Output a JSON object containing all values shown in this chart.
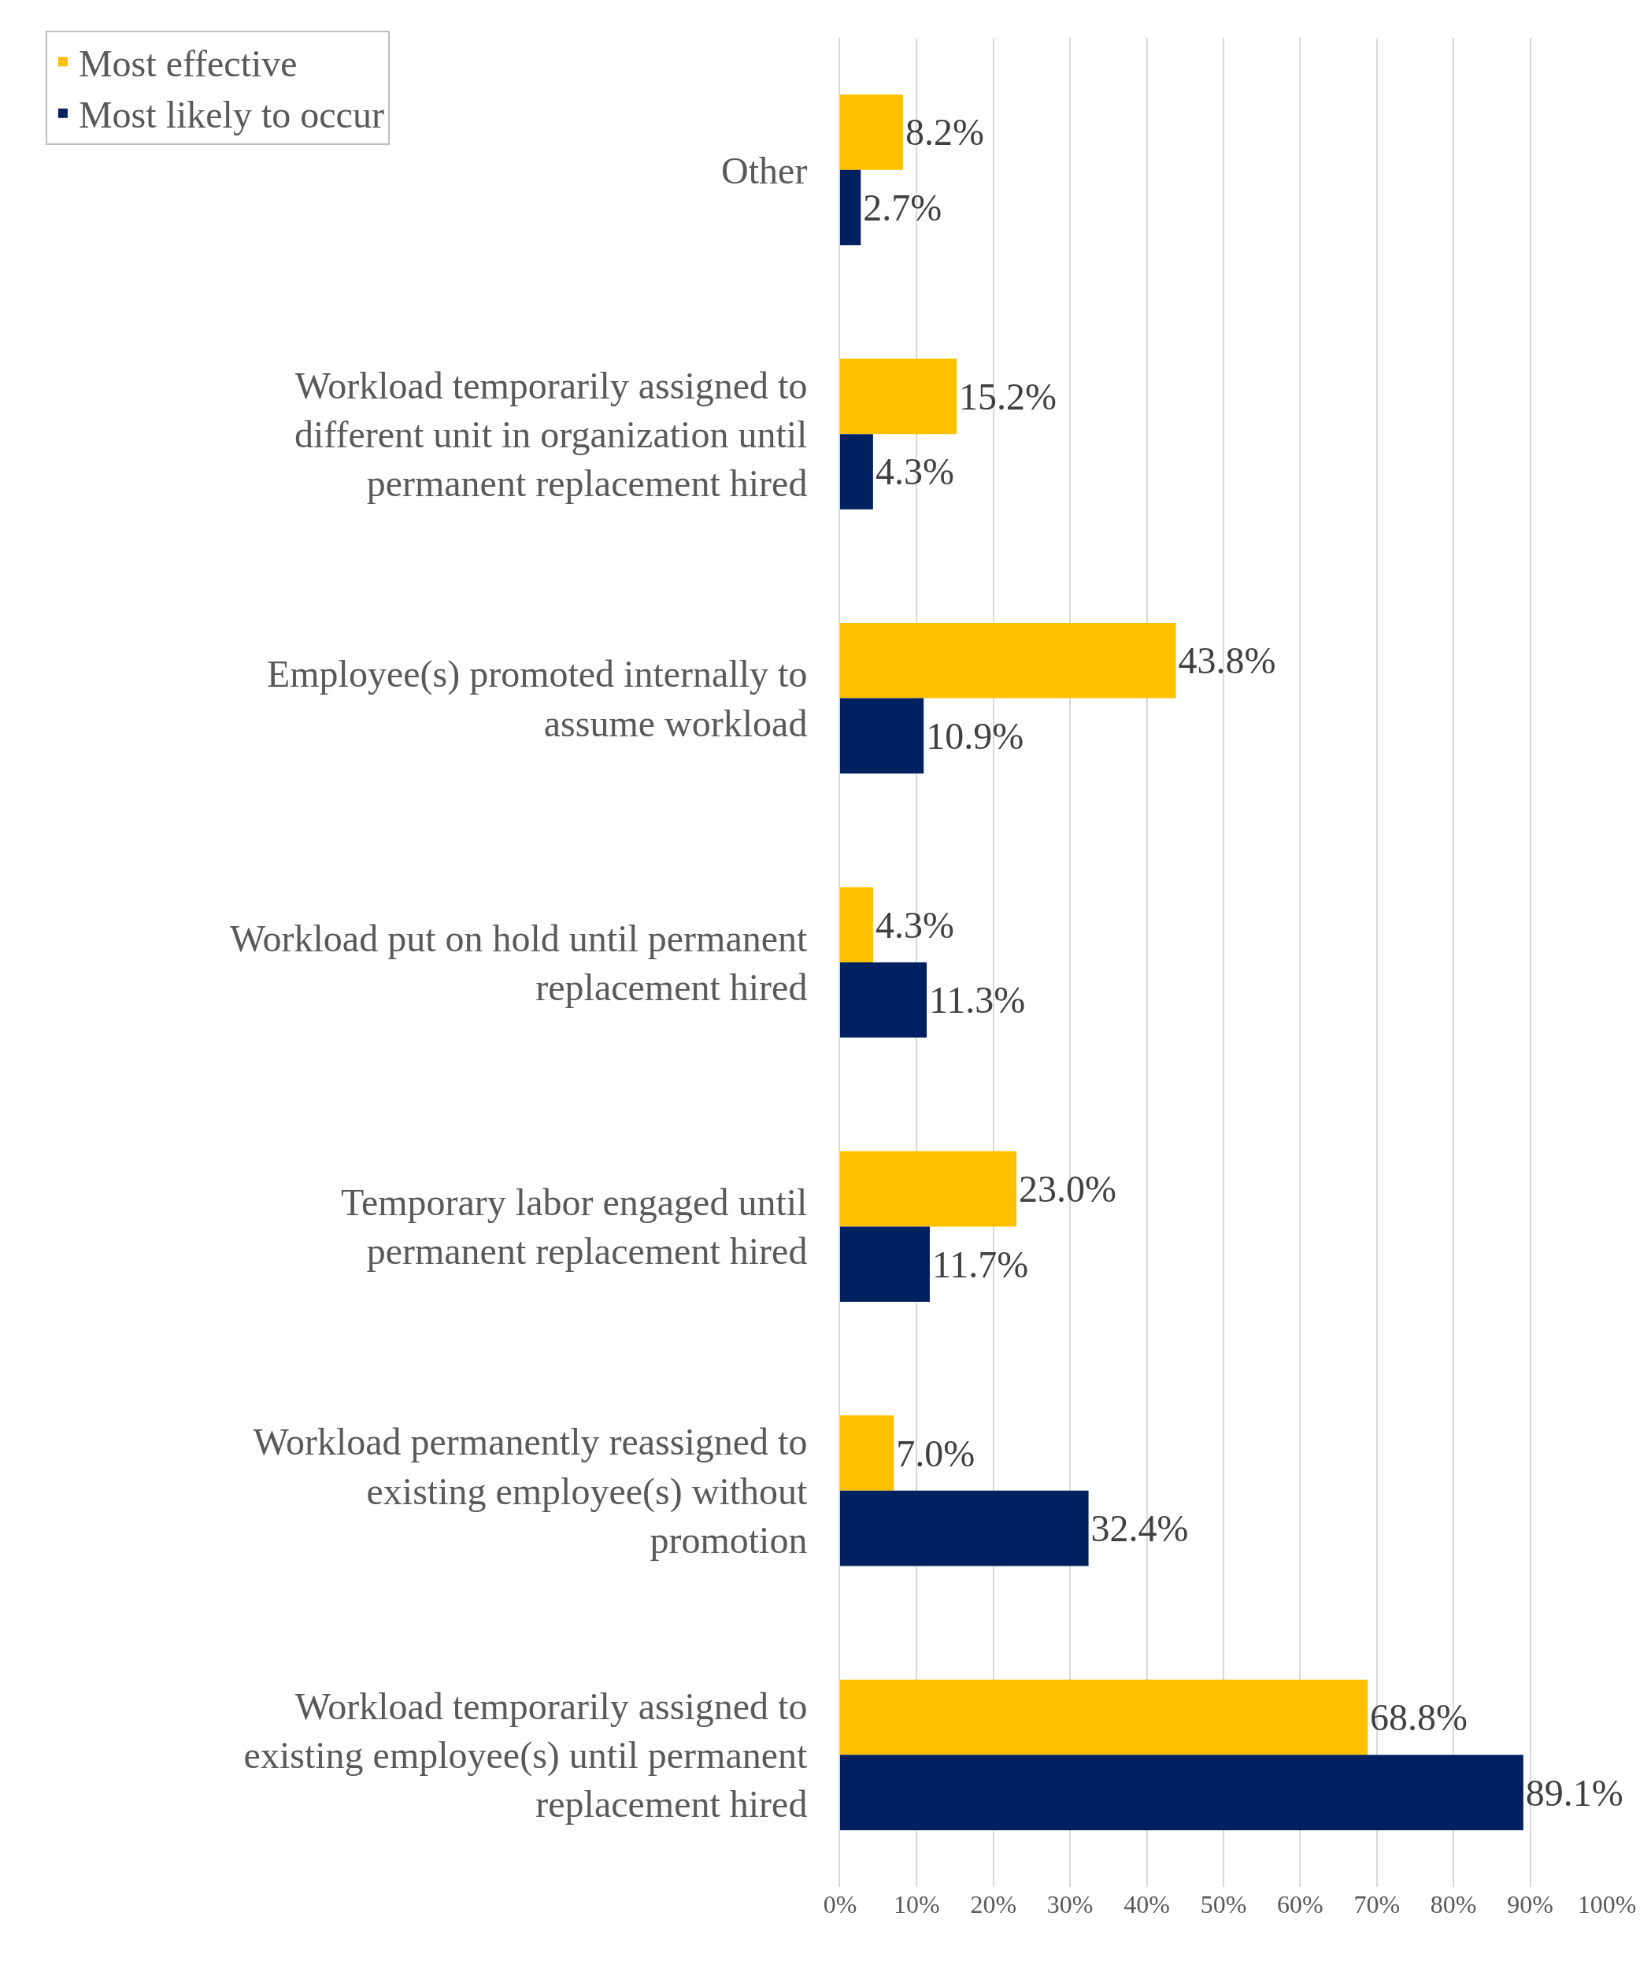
{
  "chart_data": {
    "type": "bar",
    "orientation": "horizontal",
    "categories": [
      "Other",
      "Workload temporarily assigned to different unit in organization until permanent replacement hired",
      "Employee(s) promoted internally to assume workload",
      "Workload put on hold until permanent replacement hired",
      "Temporary labor engaged until permanent replacement hired",
      "Workload permanently reassigned to existing employee(s) without promotion",
      "Workload temporarily assigned to existing employee(s) until permanent replacement hired"
    ],
    "series": [
      {
        "name": "Most effective",
        "color": "#ffc000",
        "values": [
          8.2,
          15.2,
          43.8,
          4.3,
          23.0,
          7.0,
          68.8
        ],
        "value_labels": [
          "8.2%",
          "15.2%",
          "43.8%",
          "4.3%",
          "23.0%",
          "7.0%",
          "68.8%"
        ]
      },
      {
        "name": "Most likely to occur",
        "color": "#002060",
        "values": [
          2.7,
          4.3,
          10.9,
          11.3,
          11.7,
          32.4,
          89.1
        ],
        "value_labels": [
          "2.7%",
          "4.3%",
          "10.9%",
          "11.3%",
          "11.7%",
          "32.4%",
          "89.1%"
        ]
      }
    ],
    "xlim": [
      0,
      100
    ],
    "xticks": [
      {
        "value": 0,
        "label": "0%"
      },
      {
        "value": 10,
        "label": "10%"
      },
      {
        "value": 20,
        "label": "20%"
      },
      {
        "value": 30,
        "label": "30%"
      },
      {
        "value": 40,
        "label": "40%"
      },
      {
        "value": 50,
        "label": "50%"
      },
      {
        "value": 60,
        "label": "60%"
      },
      {
        "value": 70,
        "label": "70%"
      },
      {
        "value": 80,
        "label": "80%"
      },
      {
        "value": 90,
        "label": "90%"
      },
      {
        "value": 100,
        "label": "100%"
      }
    ],
    "grid": "x",
    "legend": "top left"
  }
}
